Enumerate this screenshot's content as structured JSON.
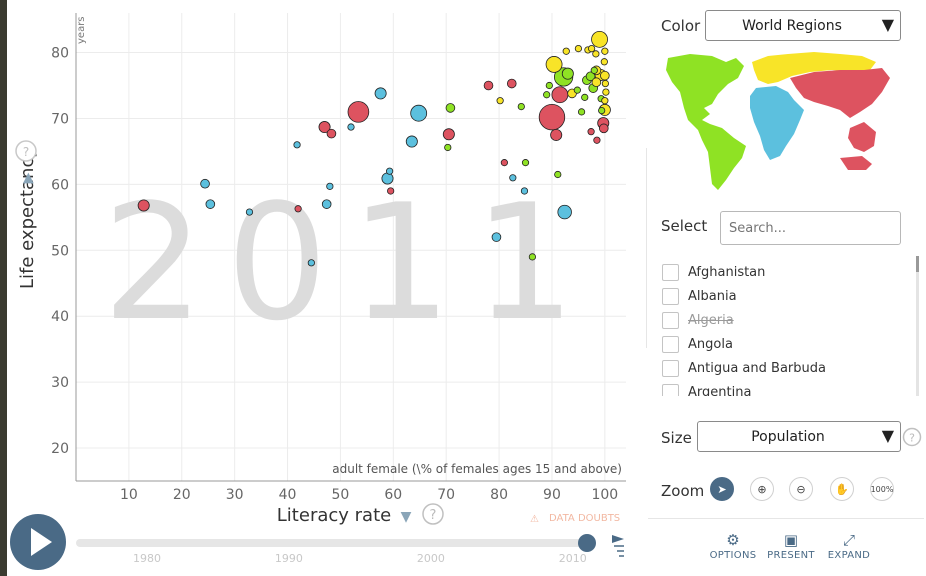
{
  "chart_data": {
    "type": "scatter",
    "year_label": "2011",
    "xlabel": "Literacy rate",
    "x_subtitle": "adult female (\\% of females ages 15 and above)",
    "ylabel": "Life expectancy",
    "y_unit": "years",
    "xlim": [
      0,
      104
    ],
    "ylim": [
      15,
      86
    ],
    "x_ticks": [
      10,
      20,
      30,
      40,
      50,
      60,
      70,
      80,
      90,
      100
    ],
    "y_ticks": [
      20,
      30,
      40,
      50,
      60,
      70,
      80
    ],
    "grid": true,
    "colors": {
      "red": "#dd5360",
      "blue": "#5cc0de",
      "green": "#8fe224",
      "yellow": "#f8e428"
    },
    "points": [
      {
        "x": 12.8,
        "y": 56.8,
        "color": "red",
        "size": 4
      },
      {
        "x": 24.4,
        "y": 60.1,
        "color": "blue",
        "size": 3
      },
      {
        "x": 25.4,
        "y": 57.0,
        "color": "blue",
        "size": 3
      },
      {
        "x": 32.8,
        "y": 55.8,
        "color": "blue",
        "size": 2
      },
      {
        "x": 41.8,
        "y": 66.0,
        "color": "blue",
        "size": 2
      },
      {
        "x": 42.0,
        "y": 56.3,
        "color": "red",
        "size": 2
      },
      {
        "x": 44.5,
        "y": 48.1,
        "color": "blue",
        "size": 2
      },
      {
        "x": 47.0,
        "y": 68.7,
        "color": "red",
        "size": 4
      },
      {
        "x": 48.3,
        "y": 67.7,
        "color": "red",
        "size": 3
      },
      {
        "x": 47.4,
        "y": 57.0,
        "color": "blue",
        "size": 3
      },
      {
        "x": 48.0,
        "y": 59.7,
        "color": "blue",
        "size": 2
      },
      {
        "x": 52.0,
        "y": 68.7,
        "color": "blue",
        "size": 2
      },
      {
        "x": 53.4,
        "y": 71.0,
        "color": "red",
        "size": 8
      },
      {
        "x": 57.6,
        "y": 73.8,
        "color": "blue",
        "size": 4
      },
      {
        "x": 58.9,
        "y": 60.9,
        "color": "blue",
        "size": 4
      },
      {
        "x": 59.3,
        "y": 62.0,
        "color": "blue",
        "size": 2
      },
      {
        "x": 59.5,
        "y": 59.0,
        "color": "red",
        "size": 2
      },
      {
        "x": 63.5,
        "y": 66.5,
        "color": "blue",
        "size": 4
      },
      {
        "x": 64.8,
        "y": 70.8,
        "color": "blue",
        "size": 6
      },
      {
        "x": 70.5,
        "y": 67.6,
        "color": "red",
        "size": 4
      },
      {
        "x": 70.8,
        "y": 71.6,
        "color": "green",
        "size": 3
      },
      {
        "x": 70.3,
        "y": 65.6,
        "color": "green",
        "size": 2
      },
      {
        "x": 78.0,
        "y": 75.0,
        "color": "red",
        "size": 3
      },
      {
        "x": 80.2,
        "y": 72.7,
        "color": "yellow",
        "size": 2
      },
      {
        "x": 79.5,
        "y": 52.0,
        "color": "blue",
        "size": 3
      },
      {
        "x": 81.0,
        "y": 63.3,
        "color": "red",
        "size": 2
      },
      {
        "x": 82.4,
        "y": 75.3,
        "color": "red",
        "size": 3
      },
      {
        "x": 82.6,
        "y": 61.0,
        "color": "blue",
        "size": 2
      },
      {
        "x": 84.2,
        "y": 71.8,
        "color": "green",
        "size": 2
      },
      {
        "x": 85.0,
        "y": 63.3,
        "color": "green",
        "size": 2
      },
      {
        "x": 84.8,
        "y": 59.0,
        "color": "blue",
        "size": 2
      },
      {
        "x": 86.3,
        "y": 49.0,
        "color": "green",
        "size": 2
      },
      {
        "x": 90.0,
        "y": 70.2,
        "color": "red",
        "size": 10
      },
      {
        "x": 90.4,
        "y": 78.2,
        "color": "yellow",
        "size": 6
      },
      {
        "x": 90.8,
        "y": 67.5,
        "color": "red",
        "size": 4
      },
      {
        "x": 91.5,
        "y": 73.6,
        "color": "red",
        "size": 6
      },
      {
        "x": 92.2,
        "y": 76.3,
        "color": "green",
        "size": 7
      },
      {
        "x": 93.0,
        "y": 76.8,
        "color": "green",
        "size": 4
      },
      {
        "x": 91.1,
        "y": 61.5,
        "color": "green",
        "size": 2
      },
      {
        "x": 92.4,
        "y": 55.8,
        "color": "blue",
        "size": 5
      },
      {
        "x": 89.5,
        "y": 75.0,
        "color": "green",
        "size": 2
      },
      {
        "x": 89.0,
        "y": 73.6,
        "color": "green",
        "size": 2
      },
      {
        "x": 93.8,
        "y": 73.8,
        "color": "yellow",
        "size": 3
      },
      {
        "x": 95.6,
        "y": 71.0,
        "color": "green",
        "size": 2
      },
      {
        "x": 96.2,
        "y": 73.2,
        "color": "green",
        "size": 2
      },
      {
        "x": 96.6,
        "y": 75.8,
        "color": "green",
        "size": 3
      },
      {
        "x": 97.3,
        "y": 76.4,
        "color": "green",
        "size": 3
      },
      {
        "x": 97.8,
        "y": 74.6,
        "color": "green",
        "size": 3
      },
      {
        "x": 98.4,
        "y": 75.5,
        "color": "yellow",
        "size": 3
      },
      {
        "x": 98.4,
        "y": 77.3,
        "color": "yellow",
        "size": 3
      },
      {
        "x": 98.3,
        "y": 79.8,
        "color": "yellow",
        "size": 2
      },
      {
        "x": 99.0,
        "y": 82.0,
        "color": "yellow",
        "size": 6
      },
      {
        "x": 99.2,
        "y": 76.6,
        "color": "yellow",
        "size": 4
      },
      {
        "x": 99.3,
        "y": 73.0,
        "color": "green",
        "size": 2
      },
      {
        "x": 99.4,
        "y": 71.2,
        "color": "green",
        "size": 2
      },
      {
        "x": 99.7,
        "y": 69.3,
        "color": "red",
        "size": 4
      },
      {
        "x": 99.8,
        "y": 68.5,
        "color": "red",
        "size": 3
      },
      {
        "x": 100.0,
        "y": 80.2,
        "color": "yellow",
        "size": 2
      },
      {
        "x": 99.9,
        "y": 78.6,
        "color": "yellow",
        "size": 2
      },
      {
        "x": 100.0,
        "y": 76.5,
        "color": "yellow",
        "size": 3
      },
      {
        "x": 100.1,
        "y": 75.3,
        "color": "yellow",
        "size": 2
      },
      {
        "x": 100.0,
        "y": 72.7,
        "color": "yellow",
        "size": 2
      },
      {
        "x": 100.0,
        "y": 71.3,
        "color": "yellow",
        "size": 4
      },
      {
        "x": 100.2,
        "y": 74.0,
        "color": "yellow",
        "size": 2
      },
      {
        "x": 97.4,
        "y": 68.0,
        "color": "red",
        "size": 2
      },
      {
        "x": 98.5,
        "y": 66.7,
        "color": "red",
        "size": 2
      },
      {
        "x": 95.0,
        "y": 80.6,
        "color": "yellow",
        "size": 2
      },
      {
        "x": 96.8,
        "y": 80.4,
        "color": "yellow",
        "size": 2
      },
      {
        "x": 92.7,
        "y": 80.2,
        "color": "yellow",
        "size": 2
      },
      {
        "x": 97.5,
        "y": 80.6,
        "color": "yellow",
        "size": 2
      },
      {
        "x": 94.8,
        "y": 74.3,
        "color": "green",
        "size": 2
      },
      {
        "x": 98.0,
        "y": 77.3,
        "color": "green",
        "size": 2
      }
    ]
  },
  "warning": "DATA DOUBTS",
  "timeline": {
    "ticks": [
      "1980",
      "1990",
      "2000",
      "2010"
    ],
    "start": 1975,
    "end": 2011,
    "current": 2011
  },
  "panel": {
    "color_label": "Color",
    "color_value": "World Regions",
    "map_colors": {
      "americas": "#8fe224",
      "europe": "#f8e428",
      "africa": "#5cc0de",
      "asia": "#dd5360"
    },
    "select_label": "Select",
    "search_placeholder": "Search...",
    "countries": [
      "Afghanistan",
      "Albania",
      "Algeria",
      "Angola",
      "Antigua and Barbuda",
      "Argentina"
    ],
    "size_label": "Size",
    "size_value": "Population",
    "zoom_label": "Zoom",
    "zoom_100": "100%",
    "options": "OPTIONS",
    "present": "PRESENT",
    "expand": "EXPAND"
  }
}
